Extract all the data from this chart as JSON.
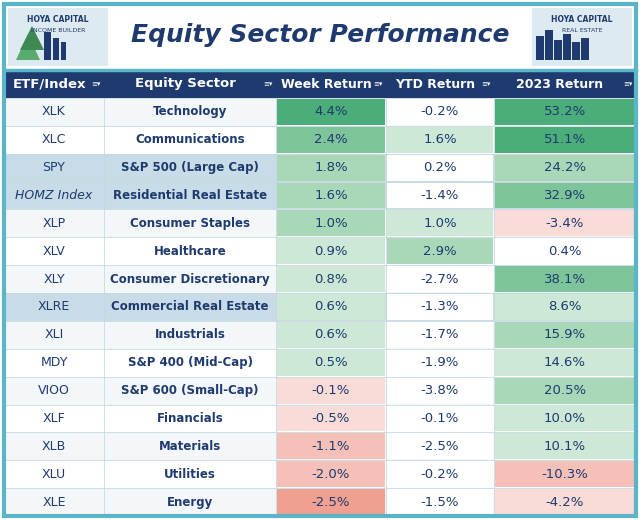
{
  "title": "Equity Sector Performance",
  "header_bg": "#1e3a6e",
  "header_text_color": "#ffffff",
  "title_color": "#1e3a6e",
  "outer_border_color": "#5ab5c8",
  "columns": [
    "ETF/Index",
    "Equity Sector",
    "Week Return",
    "YTD Return",
    "2023 Return"
  ],
  "rows": [
    {
      "etf": "XLK",
      "sector": "Technology",
      "week": "4.4%",
      "ytd": "-0.2%",
      "ret2023": "53.2%"
    },
    {
      "etf": "XLC",
      "sector": "Communications",
      "week": "2.4%",
      "ytd": "1.6%",
      "ret2023": "51.1%"
    },
    {
      "etf": "SPY",
      "sector": "S&P 500 (Large Cap)",
      "week": "1.8%",
      "ytd": "0.2%",
      "ret2023": "24.2%"
    },
    {
      "etf": "HOMZ Index",
      "sector": "Residential Real Estate",
      "week": "1.6%",
      "ytd": "-1.4%",
      "ret2023": "32.9%"
    },
    {
      "etf": "XLP",
      "sector": "Consumer Staples",
      "week": "1.0%",
      "ytd": "1.0%",
      "ret2023": "-3.4%"
    },
    {
      "etf": "XLV",
      "sector": "Healthcare",
      "week": "0.9%",
      "ytd": "2.9%",
      "ret2023": "0.4%"
    },
    {
      "etf": "XLY",
      "sector": "Consumer Discretionary",
      "week": "0.8%",
      "ytd": "-2.7%",
      "ret2023": "38.1%"
    },
    {
      "etf": "XLRE",
      "sector": "Commercial Real Estate",
      "week": "0.6%",
      "ytd": "-1.3%",
      "ret2023": "8.6%"
    },
    {
      "etf": "XLI",
      "sector": "Industrials",
      "week": "0.6%",
      "ytd": "-1.7%",
      "ret2023": "15.9%"
    },
    {
      "etf": "MDY",
      "sector": "S&P 400 (Mid-Cap)",
      "week": "0.5%",
      "ytd": "-1.9%",
      "ret2023": "14.6%"
    },
    {
      "etf": "VIOO",
      "sector": "S&P 600 (Small-Cap)",
      "week": "-0.1%",
      "ytd": "-3.8%",
      "ret2023": "20.5%"
    },
    {
      "etf": "XLF",
      "sector": "Financials",
      "week": "-0.5%",
      "ytd": "-0.1%",
      "ret2023": "10.0%"
    },
    {
      "etf": "XLB",
      "sector": "Materials",
      "week": "-1.1%",
      "ytd": "-2.5%",
      "ret2023": "10.1%"
    },
    {
      "etf": "XLU",
      "sector": "Utilities",
      "week": "-2.0%",
      "ytd": "-0.2%",
      "ret2023": "-10.3%"
    },
    {
      "etf": "XLE",
      "sector": "Energy",
      "week": "-2.5%",
      "ytd": "-1.5%",
      "ret2023": "-4.2%"
    }
  ],
  "week_values": [
    4.4,
    2.4,
    1.8,
    1.6,
    1.0,
    0.9,
    0.8,
    0.6,
    0.6,
    0.5,
    -0.1,
    -0.5,
    -1.1,
    -2.0,
    -2.5
  ],
  "ytd_values": [
    -0.2,
    1.6,
    0.2,
    -1.4,
    1.0,
    2.9,
    -2.7,
    -1.3,
    -1.7,
    -1.9,
    -3.8,
    -0.1,
    -2.5,
    -0.2,
    -1.5
  ],
  "ret2023_values": [
    53.2,
    51.1,
    24.2,
    32.9,
    -3.4,
    0.4,
    38.1,
    8.6,
    15.9,
    14.6,
    20.5,
    10.0,
    10.1,
    -10.3,
    -4.2
  ],
  "special_bg_rows": {
    "2": "#c8dce8",
    "3": "#c8dce8",
    "7": "#c8dce8"
  },
  "green_strong": "#4aad7a",
  "green_medium": "#7ec49a",
  "green_light": "#a8d8b8",
  "green_vlight": "#cde8d6",
  "red_strong": "#e8705e",
  "red_medium": "#f0a090",
  "red_light": "#f5c0b8",
  "red_vlight": "#f9dbd8",
  "neutral": "#ffffff",
  "row_odd_bg": "#f4f7fa",
  "row_even_bg": "#ffffff",
  "text_dark": "#1e3a6e",
  "grid_color": "#c8d8e0",
  "title_area_bg": "#ffffff"
}
